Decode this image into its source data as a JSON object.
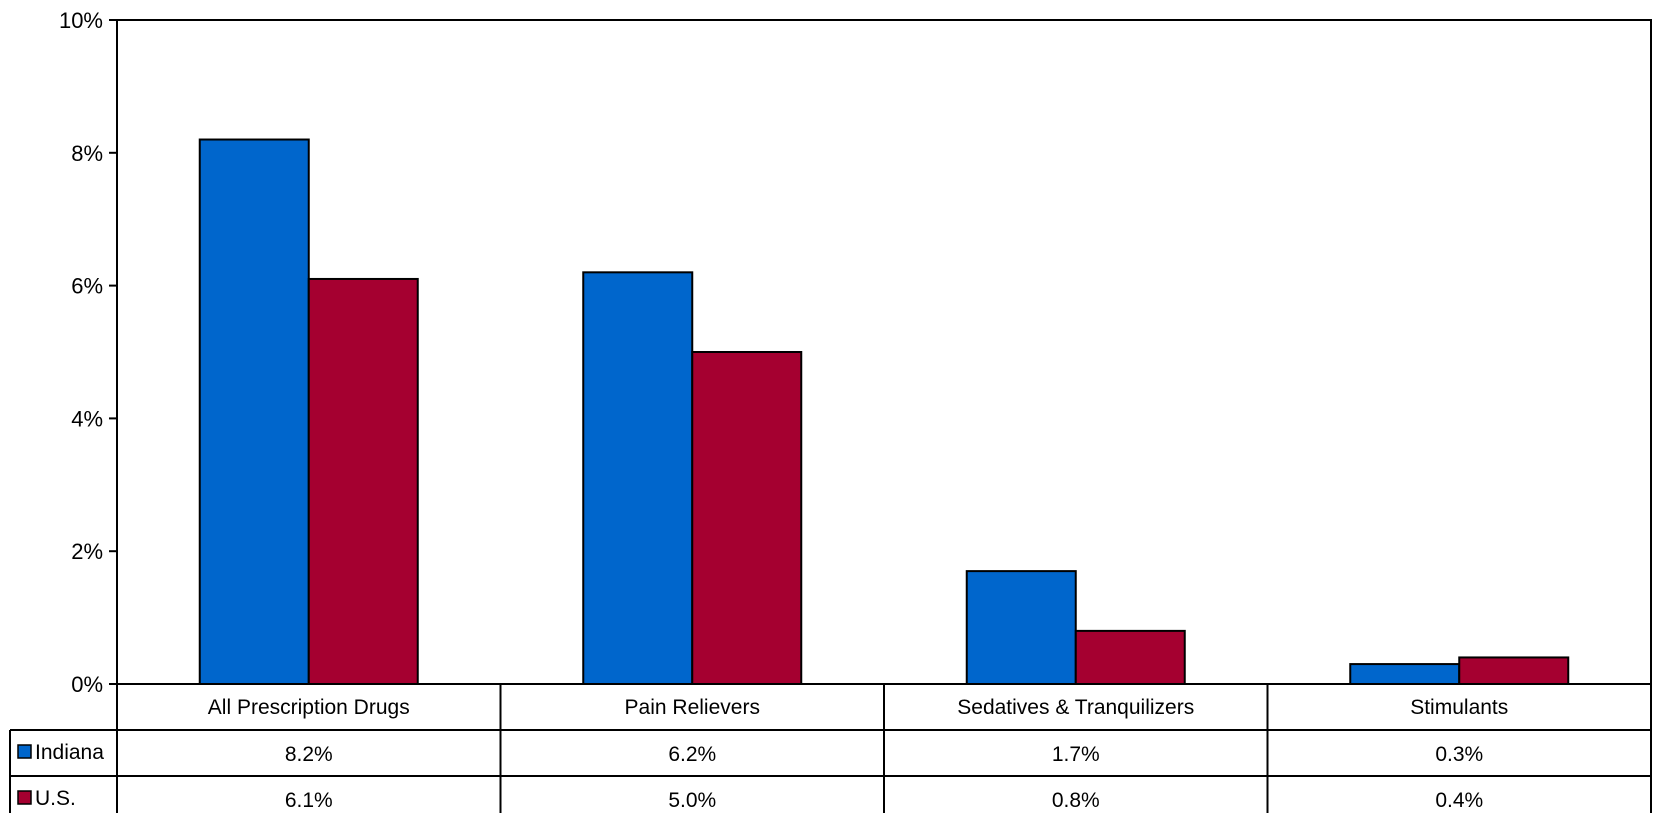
{
  "chart_data": {
    "type": "bar",
    "categories": [
      "All Prescription Drugs",
      "Pain Relievers",
      "Sedatives & Tranquilizers",
      "Stimulants"
    ],
    "series": [
      {
        "name": "Indiana",
        "values": [
          8.2,
          6.2,
          1.7,
          0.3
        ],
        "labels": [
          "8.2%",
          "6.2%",
          "1.7%",
          "0.3%"
        ],
        "color": "#0066CC"
      },
      {
        "name": "U.S.",
        "values": [
          6.1,
          5.0,
          0.8,
          0.4
        ],
        "labels": [
          "6.1%",
          "5.0%",
          "0.8%",
          "0.4%"
        ],
        "color": "#A50030"
      }
    ],
    "ylim": [
      0,
      10
    ],
    "yticks": [
      0,
      2,
      4,
      6,
      8,
      10
    ],
    "ytick_labels": [
      "0%",
      "2%",
      "4%",
      "6%",
      "8%",
      "10%"
    ],
    "grid": false,
    "legend": "data-table-left"
  }
}
